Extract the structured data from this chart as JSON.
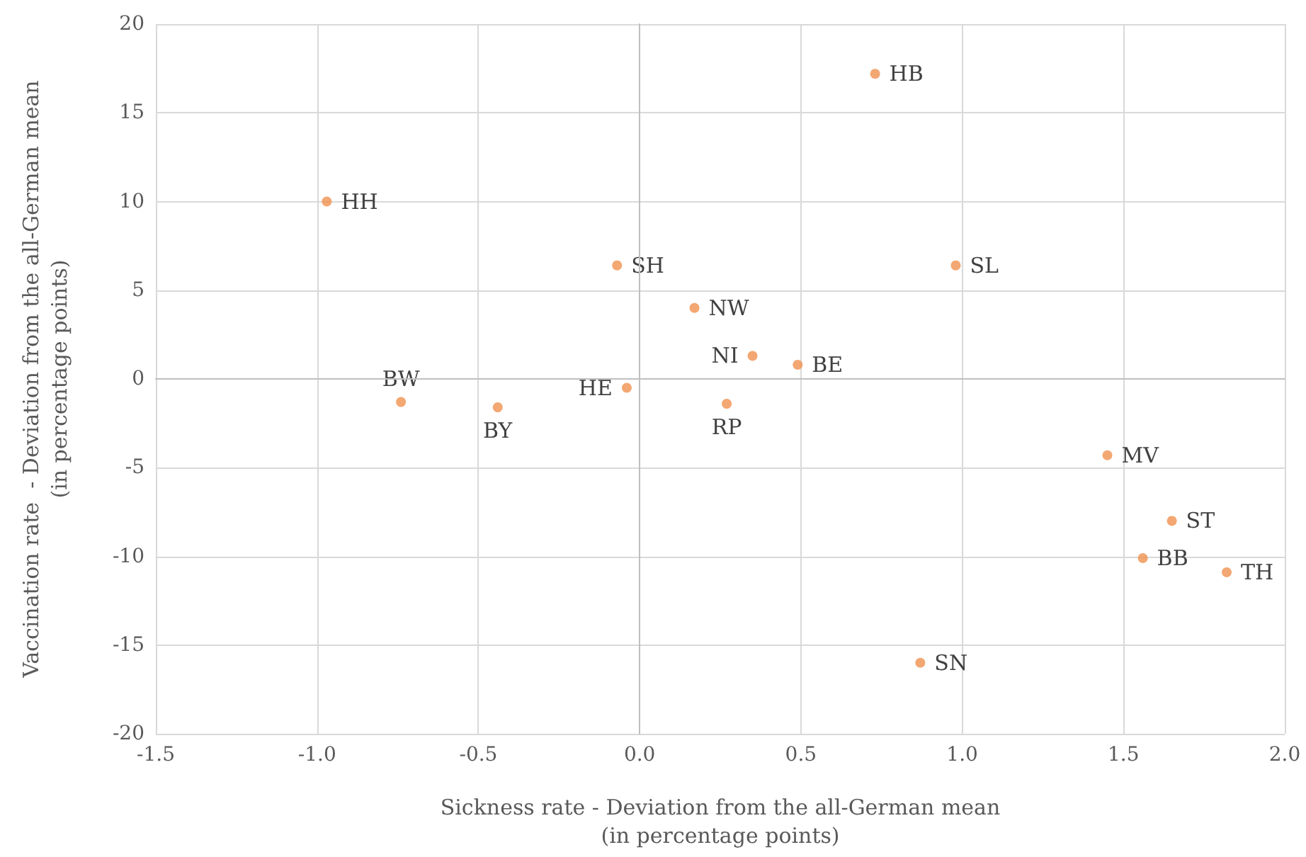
{
  "chart_data": {
    "type": "scatter",
    "xlabel": "Sickness rate - Deviation from the all-German mean\n(in percentage points)",
    "ylabel": "Vaccination rate  - Deviation from the all-German mean\n(in percentage points)",
    "x": [
      -0.97,
      -0.74,
      -0.44,
      -0.04,
      -0.07,
      0.17,
      0.35,
      0.27,
      0.49,
      0.73,
      0.98,
      1.45,
      1.65,
      1.56,
      1.82,
      0.87
    ],
    "values": [
      10.0,
      -1.3,
      -1.6,
      -0.5,
      6.4,
      4.0,
      1.3,
      -1.4,
      0.8,
      17.2,
      6.4,
      -4.3,
      -8.0,
      -10.1,
      -10.9,
      -16.0
    ],
    "color": "#f0914f",
    "marker": "circle",
    "annotations": [
      {
        "text": "HH",
        "x": -0.97,
        "y": 10.0
      },
      {
        "text": "BW",
        "x": -0.74,
        "y": -1.3
      },
      {
        "text": "BY",
        "x": -0.44,
        "y": -1.6
      },
      {
        "text": "HE",
        "x": -0.04,
        "y": -0.5
      },
      {
        "text": "SH",
        "x": -0.07,
        "y": 6.4
      },
      {
        "text": "NW",
        "x": 0.17,
        "y": 4.0
      },
      {
        "text": "NI",
        "x": 0.35,
        "y": 1.3
      },
      {
        "text": "RP",
        "x": 0.27,
        "y": -1.4
      },
      {
        "text": "BE",
        "x": 0.49,
        "y": 0.8
      },
      {
        "text": "HB",
        "x": 0.73,
        "y": 17.2
      },
      {
        "text": "SL",
        "x": 0.98,
        "y": 6.4
      },
      {
        "text": "MV",
        "x": 1.45,
        "y": -4.3
      },
      {
        "text": "ST",
        "x": 1.65,
        "y": -8.0
      },
      {
        "text": "BB",
        "x": 1.56,
        "y": -10.1
      },
      {
        "text": "TH",
        "x": 1.82,
        "y": -10.9
      },
      {
        "text": "SN",
        "x": 0.87,
        "y": -16.0
      }
    ],
    "xlim": [
      -1.5,
      2.0
    ],
    "xticks": [
      -1.5,
      {
        "value": -1.0,
        "label": "-1.0"
      },
      -0.5,
      {
        "value": 0,
        "label": "0.0"
      },
      0.5,
      {
        "value": 1,
        "label": "1.0"
      },
      1.5,
      {
        "value": 2,
        "label": "2.0"
      }
    ],
    "ylim": [
      -20,
      20
    ],
    "yticks": [
      -20,
      -15,
      -10,
      -5,
      0,
      5,
      10,
      15,
      20
    ],
    "grid": true
  }
}
